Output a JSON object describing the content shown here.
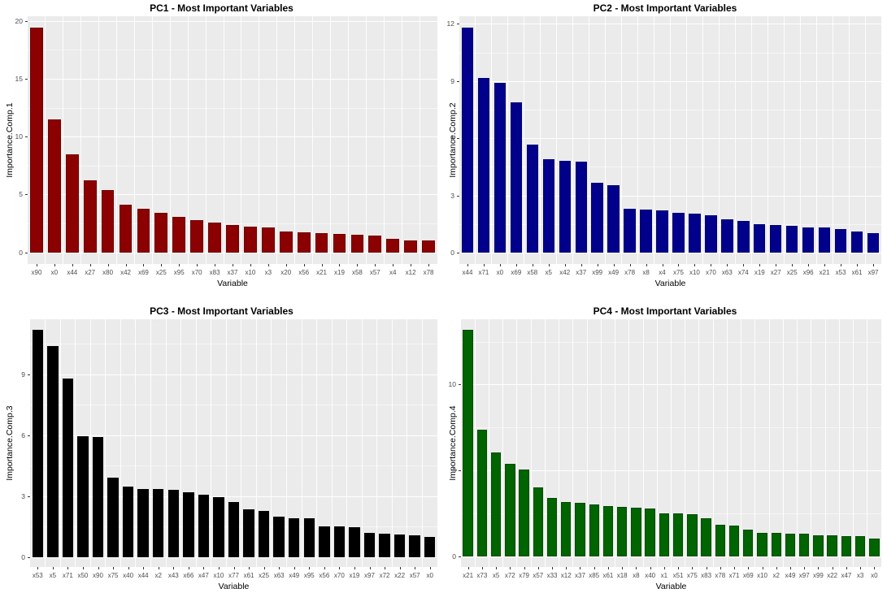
{
  "figure": {
    "background": "#FFFFFF",
    "panel_background": "#EBEBEB",
    "grid_color": "#FFFFFF",
    "tick_text_color": "#4D4D4D",
    "title_color": "#000000"
  },
  "chart_data": [
    {
      "type": "bar",
      "title": "PC1 - Most Important Variables",
      "xlabel": "Variable",
      "ylabel": "Importance.Comp.1",
      "bar_color": "#8B0000",
      "bar_edge_color": "#700000",
      "grid": true,
      "legend": "none",
      "yticks": [
        0,
        5,
        10,
        15,
        20
      ],
      "ylim": [
        -1.0,
        20.4
      ],
      "categories": [
        "x90",
        "x0",
        "x44",
        "x27",
        "x80",
        "x42",
        "x69",
        "x25",
        "x95",
        "x70",
        "x83",
        "x37",
        "x10",
        "x3",
        "x20",
        "x56",
        "x21",
        "x19",
        "x58",
        "x57",
        "x4",
        "x12",
        "x78"
      ],
      "values": [
        19.4,
        11.5,
        8.5,
        6.2,
        5.35,
        4.1,
        3.75,
        3.45,
        3.05,
        2.8,
        2.55,
        2.4,
        2.25,
        2.15,
        1.8,
        1.75,
        1.7,
        1.6,
        1.5,
        1.45,
        1.15,
        1.0,
        1.0
      ]
    },
    {
      "type": "bar",
      "title": "PC2 - Most Important Variables",
      "xlabel": "Variable",
      "ylabel": "Importance.Comp.2",
      "bar_color": "#00008B",
      "bar_edge_color": "#000070",
      "grid": true,
      "legend": "none",
      "yticks": [
        0,
        3,
        6,
        9,
        12
      ],
      "ylim": [
        -0.6,
        12.4
      ],
      "categories": [
        "x44",
        "x71",
        "x0",
        "x69",
        "x58",
        "x5",
        "x42",
        "x37",
        "x99",
        "x49",
        "x78",
        "x8",
        "x4",
        "x75",
        "x10",
        "x70",
        "x63",
        "x74",
        "x19",
        "x27",
        "x25",
        "x96",
        "x21",
        "x53",
        "x61",
        "x97"
      ],
      "values": [
        11.8,
        9.15,
        8.9,
        7.9,
        5.65,
        4.9,
        4.8,
        4.75,
        3.65,
        3.55,
        2.3,
        2.25,
        2.2,
        2.1,
        2.05,
        1.95,
        1.75,
        1.65,
        1.5,
        1.45,
        1.4,
        1.3,
        1.3,
        1.25,
        1.1,
        1.0
      ]
    },
    {
      "type": "bar",
      "title": "PC3 - Most Important Variables",
      "xlabel": "Variable",
      "ylabel": "Importance.Comp.3",
      "bar_color": "#000000",
      "bar_edge_color": "#000000",
      "grid": true,
      "legend": "none",
      "yticks": [
        0,
        3,
        6,
        9
      ],
      "ylim": [
        -0.5,
        11.7
      ],
      "categories": [
        "x53",
        "x5",
        "x71",
        "x50",
        "x90",
        "x75",
        "x40",
        "x44",
        "x2",
        "x43",
        "x66",
        "x47",
        "x10",
        "x77",
        "x61",
        "x25",
        "x63",
        "x49",
        "x95",
        "x56",
        "x70",
        "x19",
        "x97",
        "x72",
        "x22",
        "x57",
        "x0"
      ],
      "values": [
        11.2,
        10.4,
        8.8,
        5.95,
        5.9,
        3.9,
        3.45,
        3.35,
        3.35,
        3.3,
        3.2,
        3.05,
        2.95,
        2.7,
        2.35,
        2.25,
        2.0,
        1.9,
        1.9,
        1.5,
        1.5,
        1.45,
        1.2,
        1.15,
        1.1,
        1.05,
        1.0
      ]
    },
    {
      "type": "bar",
      "title": "PC4 - Most Important Variables",
      "xlabel": "Variable",
      "ylabel": "Importance.Comp.4",
      "bar_color": "#006400",
      "bar_edge_color": "#004B00",
      "grid": true,
      "legend": "none",
      "yticks": [
        0,
        5,
        10
      ],
      "ylim": [
        -0.6,
        13.8
      ],
      "categories": [
        "x21",
        "x73",
        "x5",
        "x72",
        "x79",
        "x57",
        "x33",
        "x12",
        "x37",
        "x85",
        "x61",
        "x18",
        "x8",
        "x40",
        "x1",
        "x51",
        "x75",
        "x83",
        "x78",
        "x71",
        "x69",
        "x10",
        "x2",
        "x49",
        "x97",
        "x99",
        "x22",
        "x47",
        "x3",
        "x0"
      ],
      "values": [
        13.2,
        7.4,
        6.05,
        5.4,
        5.05,
        4.05,
        3.4,
        3.2,
        3.15,
        3.05,
        2.95,
        2.9,
        2.85,
        2.8,
        2.5,
        2.5,
        2.45,
        2.25,
        1.85,
        1.8,
        1.55,
        1.4,
        1.4,
        1.35,
        1.35,
        1.25,
        1.25,
        1.2,
        1.2,
        1.05
      ]
    }
  ]
}
